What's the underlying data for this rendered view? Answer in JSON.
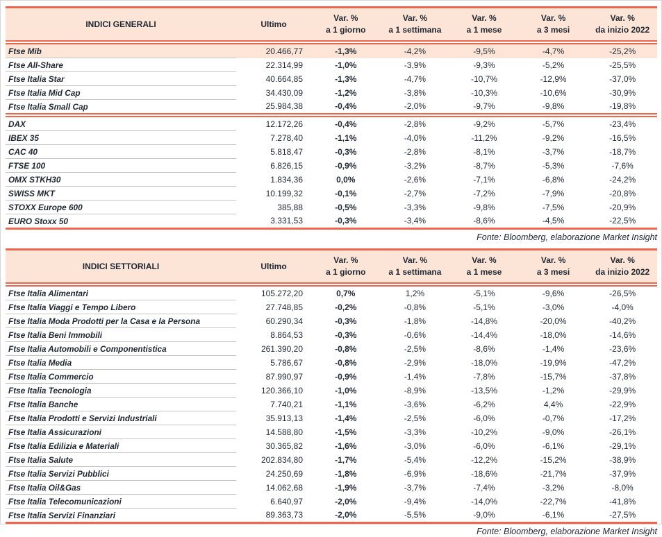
{
  "theme": {
    "accent": "#f0664c",
    "header_bg": "#fce4d6",
    "highlight_bg": "#fce4d6",
    "text": "#1f2733",
    "row_line": "#c4c4c4",
    "page_border": "#d6d6d6"
  },
  "columns": {
    "ultimo": "Ultimo",
    "var_headers": [
      {
        "line1": "Var. %",
        "line2": "a 1 giorno"
      },
      {
        "line1": "Var. %",
        "line2": "a 1 settimana"
      },
      {
        "line1": "Var. %",
        "line2": "a 1 mese"
      },
      {
        "line1": "Var. %",
        "line2": "a 3 mesi"
      },
      {
        "line1": "Var. %",
        "line2": "da inizio 2022"
      }
    ]
  },
  "tables": [
    {
      "title": "INDICI GENERALI",
      "source": "Fonte: Bloomberg, elaborazione Market Insight",
      "groups": [
        {
          "rows": [
            {
              "name": "Ftse Mib",
              "ultimo": "20.466,77",
              "highlight": true,
              "vars": [
                "-1,3%",
                "-4,2%",
                "-9,5%",
                "-4,7%",
                "-25,2%"
              ]
            },
            {
              "name": "Ftse All-Share",
              "ultimo": "22.314,99",
              "highlight": false,
              "vars": [
                "-1,0%",
                "-3,9%",
                "-9,3%",
                "-5,2%",
                "-25,5%"
              ]
            },
            {
              "name": "Ftse Italia Star",
              "ultimo": "40.664,85",
              "highlight": false,
              "vars": [
                "-1,3%",
                "-4,7%",
                "-10,7%",
                "-12,9%",
                "-37,0%"
              ]
            },
            {
              "name": "Ftse Italia Mid Cap",
              "ultimo": "34.430,09",
              "highlight": false,
              "vars": [
                "-1,2%",
                "-3,8%",
                "-10,3%",
                "-10,6%",
                "-30,9%"
              ]
            },
            {
              "name": "Ftse Italia Small Cap",
              "ultimo": "25.984,38",
              "highlight": false,
              "vars": [
                "-0,4%",
                "-2,0%",
                "-9,7%",
                "-9,8%",
                "-19,8%"
              ]
            }
          ]
        },
        {
          "rows": [
            {
              "name": "DAX",
              "ultimo": "12.172,26",
              "highlight": false,
              "vars": [
                "-0,4%",
                "-2,8%",
                "-9,2%",
                "-5,7%",
                "-23,4%"
              ]
            },
            {
              "name": "IBEX 35",
              "ultimo": "7.278,40",
              "highlight": false,
              "vars": [
                "-1,1%",
                "-4,0%",
                "-11,2%",
                "-9,2%",
                "-16,5%"
              ]
            },
            {
              "name": "CAC 40",
              "ultimo": "5.818,47",
              "highlight": false,
              "vars": [
                "-0,3%",
                "-2,8%",
                "-8,1%",
                "-3,7%",
                "-18,7%"
              ]
            },
            {
              "name": "FTSE 100",
              "ultimo": "6.826,15",
              "highlight": false,
              "vars": [
                "-0,9%",
                "-3,2%",
                "-8,7%",
                "-5,3%",
                "-7,6%"
              ]
            },
            {
              "name": "OMX STKH30",
              "ultimo": "1.834,36",
              "highlight": false,
              "vars": [
                "0,0%",
                "-2,6%",
                "-7,1%",
                "-6,8%",
                "-24,2%"
              ]
            },
            {
              "name": "SWISS MKT",
              "ultimo": "10.199,32",
              "highlight": false,
              "vars": [
                "-0,1%",
                "-2,7%",
                "-7,2%",
                "-7,9%",
                "-20,8%"
              ]
            },
            {
              "name": "STOXX Europe 600",
              "ultimo": "385,88",
              "highlight": false,
              "vars": [
                "-0,5%",
                "-3,3%",
                "-9,8%",
                "-7,5%",
                "-20,9%"
              ]
            },
            {
              "name": "EURO Stoxx 50",
              "ultimo": "3.331,53",
              "highlight": false,
              "vars": [
                "-0,3%",
                "-3,4%",
                "-8,6%",
                "-4,5%",
                "-22,5%"
              ]
            }
          ]
        }
      ]
    },
    {
      "title": "INDICI SETTORIALI",
      "source": "Fonte: Bloomberg, elaborazione Market Insight",
      "groups": [
        {
          "rows": [
            {
              "name": "Ftse Italia Alimentari",
              "ultimo": "105.272,20",
              "highlight": false,
              "vars": [
                "0,7%",
                "1,2%",
                "-5,1%",
                "-9,6%",
                "-26,5%"
              ]
            },
            {
              "name": "Ftse Italia Viaggi e Tempo Libero",
              "ultimo": "27.748,85",
              "highlight": false,
              "vars": [
                "-0,2%",
                "-0,8%",
                "-5,1%",
                "-3,0%",
                "-4,0%"
              ]
            },
            {
              "name": "Ftse Italia Moda Prodotti per la Casa e la Persona",
              "ultimo": "60.290,34",
              "highlight": false,
              "vars": [
                "-0,3%",
                "-1,8%",
                "-14,8%",
                "-20,0%",
                "-40,2%"
              ]
            },
            {
              "name": "Ftse Italia Beni Immobili",
              "ultimo": "8.864,53",
              "highlight": false,
              "vars": [
                "-0,3%",
                "-0,6%",
                "-14,4%",
                "-18,0%",
                "-14,6%"
              ]
            },
            {
              "name": "Ftse Italia Automobili e Componentistica",
              "ultimo": "261.390,20",
              "highlight": false,
              "vars": [
                "-0,8%",
                "-2,5%",
                "-8,6%",
                "-1,4%",
                "-23,6%"
              ]
            },
            {
              "name": "Ftse Italia Media",
              "ultimo": "5.786,67",
              "highlight": false,
              "vars": [
                "-0,8%",
                "-2,9%",
                "-18,0%",
                "-19,9%",
                "-47,2%"
              ]
            },
            {
              "name": "Ftse Italia Commercio",
              "ultimo": "87.990,97",
              "highlight": false,
              "vars": [
                "-0,9%",
                "-1,4%",
                "-7,8%",
                "-15,7%",
                "-37,8%"
              ]
            },
            {
              "name": "Ftse Italia Tecnologia",
              "ultimo": "120.366,10",
              "highlight": false,
              "vars": [
                "-1,0%",
                "-8,9%",
                "-13,5%",
                "-1,2%",
                "-29,9%"
              ]
            },
            {
              "name": "Ftse Italia Banche",
              "ultimo": "7.740,21",
              "highlight": false,
              "vars": [
                "-1,1%",
                "-3,6%",
                "-6,2%",
                "4,4%",
                "-22,9%"
              ]
            },
            {
              "name": "Ftse Italia Prodotti e Servizi Industriali",
              "ultimo": "35.913,13",
              "highlight": false,
              "vars": [
                "-1,4%",
                "-2,5%",
                "-6,0%",
                "-0,7%",
                "-17,2%"
              ]
            },
            {
              "name": "Ftse Italia Assicurazioni",
              "ultimo": "14.588,80",
              "highlight": false,
              "vars": [
                "-1,5%",
                "-3,3%",
                "-10,2%",
                "-9,0%",
                "-26,1%"
              ]
            },
            {
              "name": "Ftse Italia Edilizia e Materiali",
              "ultimo": "30.365,82",
              "highlight": false,
              "vars": [
                "-1,6%",
                "-3,0%",
                "-6,0%",
                "-6,1%",
                "-29,1%"
              ]
            },
            {
              "name": "Ftse Italia Salute",
              "ultimo": "202.834,80",
              "highlight": false,
              "vars": [
                "-1,7%",
                "-5,4%",
                "-12,2%",
                "-15,2%",
                "-38,9%"
              ]
            },
            {
              "name": "Ftse Italia Servizi Pubblici",
              "ultimo": "24.250,69",
              "highlight": false,
              "vars": [
                "-1,8%",
                "-6,9%",
                "-18,6%",
                "-21,7%",
                "-37,9%"
              ]
            },
            {
              "name": "Ftse Italia Oil&Gas",
              "ultimo": "14.062,68",
              "highlight": false,
              "vars": [
                "-1,9%",
                "-3,7%",
                "-7,4%",
                "-3,2%",
                "-8,0%"
              ]
            },
            {
              "name": "Ftse Italia Telecomunicazioni",
              "ultimo": "6.640,97",
              "highlight": false,
              "vars": [
                "-2,0%",
                "-9,4%",
                "-14,0%",
                "-22,7%",
                "-41,8%"
              ]
            },
            {
              "name": "Ftse Italia Servizi Finanziari",
              "ultimo": "89.363,73",
              "highlight": false,
              "vars": [
                "-2,0%",
                "-5,5%",
                "-9,0%",
                "-6,1%",
                "-27,5%"
              ]
            }
          ]
        }
      ]
    }
  ]
}
